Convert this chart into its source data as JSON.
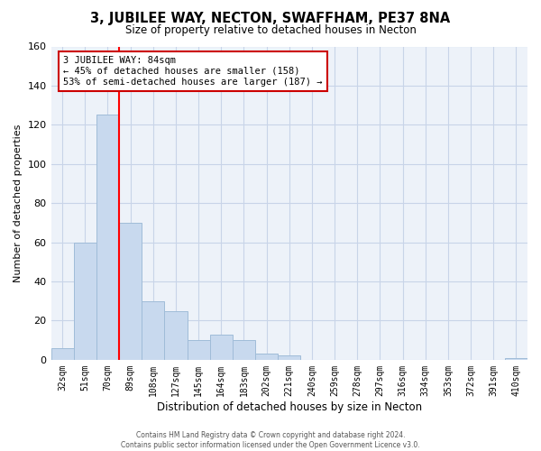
{
  "title": "3, JUBILEE WAY, NECTON, SWAFFHAM, PE37 8NA",
  "subtitle": "Size of property relative to detached houses in Necton",
  "xlabel": "Distribution of detached houses by size in Necton",
  "ylabel": "Number of detached properties",
  "bar_labels": [
    "32sqm",
    "51sqm",
    "70sqm",
    "89sqm",
    "108sqm",
    "127sqm",
    "145sqm",
    "164sqm",
    "183sqm",
    "202sqm",
    "221sqm",
    "240sqm",
    "259sqm",
    "278sqm",
    "297sqm",
    "316sqm",
    "334sqm",
    "353sqm",
    "372sqm",
    "391sqm",
    "410sqm"
  ],
  "bar_values": [
    6,
    60,
    125,
    70,
    30,
    25,
    10,
    13,
    10,
    3,
    2,
    0,
    0,
    0,
    0,
    0,
    0,
    0,
    0,
    0,
    1
  ],
  "bar_color": "#c8d9ee",
  "bar_edge_color": "#a0bcd8",
  "vline_color": "red",
  "vline_x_index": 2.5,
  "annotation_title": "3 JUBILEE WAY: 84sqm",
  "annotation_line1": "← 45% of detached houses are smaller (158)",
  "annotation_line2": "53% of semi-detached houses are larger (187) →",
  "annotation_box_color": "white",
  "annotation_box_edge": "#cc0000",
  "ylim": [
    0,
    160
  ],
  "yticks": [
    0,
    20,
    40,
    60,
    80,
    100,
    120,
    140,
    160
  ],
  "footer1": "Contains HM Land Registry data © Crown copyright and database right 2024.",
  "footer2": "Contains public sector information licensed under the Open Government Licence v3.0.",
  "background_color": "#ffffff",
  "plot_bg_color": "#edf2f9",
  "grid_color": "#c8d4e8"
}
